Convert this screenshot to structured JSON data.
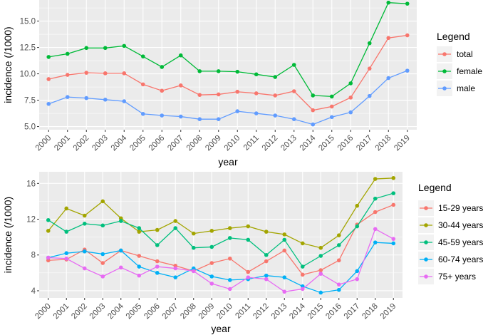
{
  "chart_data": [
    {
      "type": "line",
      "x": [
        "2000",
        "2001",
        "2002",
        "2003",
        "2004",
        "2005",
        "2006",
        "2007",
        "2008",
        "2009",
        "2010",
        "2011",
        "2012",
        "2013",
        "2014",
        "2015",
        "2016",
        "2017",
        "2018",
        "2019"
      ],
      "xlabel": "year",
      "ylabel": "incidence (/1000)",
      "ylim": [
        4.7,
        17.0
      ],
      "yticks": [
        "5.0",
        "7.5",
        "10.0",
        "12.5",
        "15.0"
      ],
      "grid": true,
      "legend_title": "Legend",
      "legend_position": "right",
      "series": [
        {
          "name": "total",
          "color": "#F8766D",
          "values": [
            9.5,
            9.9,
            10.1,
            10.05,
            10.05,
            9.0,
            8.4,
            8.9,
            8.0,
            8.05,
            8.3,
            8.15,
            7.95,
            8.35,
            6.55,
            6.9,
            7.75,
            10.5,
            13.4,
            13.65
          ]
        },
        {
          "name": "female",
          "color": "#00BA38",
          "values": [
            11.6,
            11.9,
            12.45,
            12.45,
            12.65,
            11.65,
            10.65,
            11.75,
            10.25,
            10.25,
            10.2,
            9.95,
            9.7,
            10.85,
            7.95,
            7.85,
            9.1,
            12.9,
            16.75,
            16.65
          ]
        },
        {
          "name": "male",
          "color": "#619CFF",
          "values": [
            7.15,
            7.8,
            7.7,
            7.55,
            7.4,
            6.2,
            6.05,
            5.95,
            5.7,
            5.7,
            6.45,
            6.25,
            6.05,
            5.7,
            5.2,
            5.9,
            6.35,
            7.9,
            9.6,
            10.3
          ]
        }
      ]
    },
    {
      "type": "line",
      "x": [
        "2000",
        "2001",
        "2002",
        "2003",
        "2004",
        "2005",
        "2006",
        "2007",
        "2008",
        "2009",
        "2010",
        "2011",
        "2012",
        "2013",
        "2014",
        "2015",
        "2016",
        "2017",
        "2018",
        "2019"
      ],
      "xlabel": "year",
      "ylabel": "incidence (/1000)",
      "ylim": [
        3.2,
        17.3
      ],
      "yticks": [
        "4",
        "8",
        "12",
        "16"
      ],
      "grid": true,
      "legend_title": "Legend",
      "legend_position": "right",
      "series": [
        {
          "name": "15-29 years",
          "color": "#F8766D",
          "values": [
            7.4,
            7.5,
            8.6,
            7.1,
            8.5,
            7.9,
            7.3,
            6.8,
            6.2,
            7.1,
            7.6,
            6.1,
            7.3,
            8.5,
            5.8,
            6.3,
            7.4,
            11.4,
            12.8,
            13.6
          ]
        },
        {
          "name": "30-44 years",
          "color": "#A3A500",
          "values": [
            10.7,
            13.2,
            12.4,
            14.0,
            12.1,
            10.6,
            10.8,
            11.8,
            10.4,
            10.7,
            11.0,
            11.2,
            10.6,
            10.3,
            9.3,
            8.8,
            10.2,
            13.5,
            16.5,
            16.6
          ]
        },
        {
          "name": "45-59 years",
          "color": "#00BF7D",
          "values": [
            11.9,
            10.6,
            11.5,
            11.3,
            11.8,
            11.0,
            9.1,
            11.0,
            8.8,
            8.9,
            9.9,
            9.7,
            8.0,
            9.7,
            6.7,
            7.9,
            9.1,
            11.2,
            14.3,
            14.9
          ]
        },
        {
          "name": "60-74 years",
          "color": "#00B0F6",
          "values": [
            7.7,
            8.2,
            8.4,
            8.1,
            8.5,
            6.7,
            6.0,
            5.5,
            6.5,
            5.6,
            5.2,
            5.3,
            5.7,
            5.5,
            4.5,
            3.8,
            4.1,
            6.2,
            9.4,
            9.3
          ]
        },
        {
          "name": "75+ years",
          "color": "#E76BF3",
          "values": [
            7.7,
            7.6,
            6.5,
            5.6,
            6.6,
            5.7,
            6.7,
            6.5,
            6.2,
            4.8,
            4.2,
            5.5,
            5.3,
            3.9,
            4.2,
            5.9,
            4.7,
            5.3,
            10.9,
            9.8
          ]
        }
      ]
    }
  ]
}
